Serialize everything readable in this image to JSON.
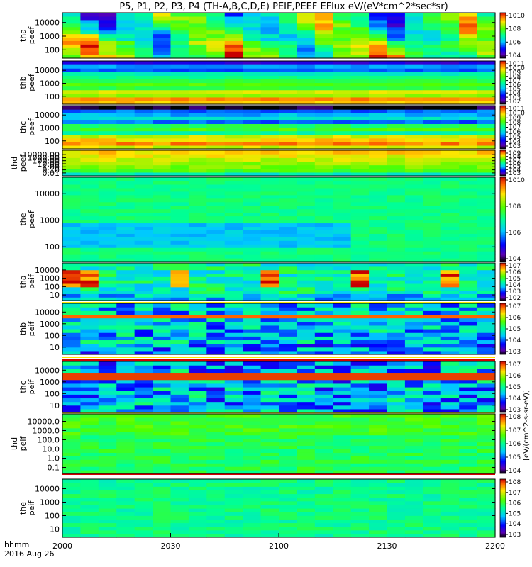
{
  "title": "P5, P1, P2, P3, P4 (TH-A,B,C,D,E) PEIF,PEEF EFlux eV/(eV*cm^2*sec*sr)",
  "units_label": "[eV/(cm^2-s-sr-eV)]",
  "x_axis": {
    "ticks": [
      "2000",
      "2030",
      "2100",
      "2130",
      "2200"
    ],
    "label_line1": "hhmm",
    "label_line2": "2016 Aug 26"
  },
  "chart_data": [
    {
      "type": "heatmap",
      "probe": "tha",
      "quantity": "peef",
      "ylabel": [
        "tha",
        "peef"
      ],
      "y_tick_labels": [
        "10000",
        "1000",
        "100"
      ],
      "y_scale": "log",
      "ylim_eV": [
        10,
        30000
      ],
      "colorbar_tick_labels": [
        "10^10",
        "10^8",
        "10^6",
        "10^4"
      ],
      "coverage_start_frac": 0.0
    },
    {
      "type": "heatmap",
      "probe": "thb",
      "quantity": "peef",
      "ylabel": [
        "thb",
        "peef"
      ],
      "y_tick_labels": [
        "10000",
        "1000",
        "100"
      ],
      "y_scale": "log",
      "ylim_eV": [
        10,
        30000
      ],
      "colorbar_tick_labels": [
        "10^11",
        "10^10",
        "10^9",
        "10^8",
        "10^7",
        "10^6",
        "10^5",
        "10^4",
        "10^3",
        "10^2"
      ],
      "coverage_start_frac": 0.0
    },
    {
      "type": "heatmap",
      "probe": "thc",
      "quantity": "peef",
      "ylabel": [
        "thc",
        "peef"
      ],
      "y_tick_labels": [
        "10000",
        "1000",
        "100"
      ],
      "y_scale": "log",
      "ylim_eV": [
        10,
        30000
      ],
      "colorbar_tick_labels": [
        "10^11",
        "10^10",
        "10^9",
        "10^8",
        "10^7",
        "10^6",
        "10^5",
        "10^4",
        "10^3"
      ],
      "coverage_start_frac": 0.0
    },
    {
      "type": "heatmap",
      "probe": "thd",
      "quantity": "peef",
      "ylabel": [
        "thd",
        "peef"
      ],
      "y_tick_labels": [
        "10000.00",
        "1000.00",
        "100.00",
        "10.00",
        "1.00",
        "0.10",
        "0.01"
      ],
      "y_scale": "log",
      "ylim_eV": [
        0.01,
        30000
      ],
      "colorbar_tick_labels": [
        "10^9",
        "10^8",
        "10^7",
        "10^6",
        "10^5",
        "10^4",
        "10^3"
      ],
      "coverage_start_frac": 0.0
    },
    {
      "type": "heatmap",
      "probe": "the",
      "quantity": "peef",
      "ylabel": [
        "the",
        "peef"
      ],
      "y_tick_labels": [
        "10000",
        "1000",
        "100"
      ],
      "y_scale": "log",
      "ylim_eV": [
        10,
        30000
      ],
      "colorbar_tick_labels": [
        "10^10",
        "10^8",
        "10^6",
        "10^4"
      ],
      "coverage_start_frac": 0.0
    },
    {
      "type": "heatmap",
      "probe": "tha",
      "quantity": "peif",
      "ylabel": [
        "tha",
        "peif"
      ],
      "y_tick_labels": [
        "10000",
        "1000",
        "100",
        "10"
      ],
      "y_scale": "log",
      "ylim_eV": [
        5,
        30000
      ],
      "colorbar_tick_labels": [
        "10^7",
        "10^6",
        "10^5",
        "10^4",
        "10^3",
        "10^2"
      ],
      "coverage_start_frac": 0.0
    },
    {
      "type": "heatmap",
      "probe": "thb",
      "quantity": "peif",
      "ylabel": [
        "thb",
        "peif"
      ],
      "y_tick_labels": [
        "10000",
        "1000",
        "100",
        "10"
      ],
      "y_scale": "log",
      "ylim_eV": [
        5,
        30000
      ],
      "colorbar_tick_labels": [
        "10^7",
        "10^6",
        "10^5",
        "10^4",
        "10^3"
      ],
      "coverage_start_frac": 0.0
    },
    {
      "type": "heatmap",
      "probe": "thc",
      "quantity": "peif",
      "ylabel": [
        "thc",
        "peif"
      ],
      "y_tick_labels": [
        "10000",
        "1000",
        "100",
        "10"
      ],
      "y_scale": "log",
      "ylim_eV": [
        5,
        30000
      ],
      "colorbar_tick_labels": [
        "10^7",
        "10^6",
        "10^5",
        "10^4",
        "10^3"
      ],
      "coverage_start_frac": 0.0
    },
    {
      "type": "heatmap",
      "probe": "thd",
      "quantity": "peif",
      "ylabel": [
        "thd",
        "peif"
      ],
      "y_tick_labels": [
        "10000.0",
        "1000.0",
        "100.0",
        "10.0",
        "1.0",
        "0.1"
      ],
      "y_scale": "log",
      "ylim_eV": [
        0.05,
        30000
      ],
      "colorbar_tick_labels": [
        "10^8",
        "10^7",
        "10^6",
        "10^5",
        "10^4"
      ],
      "coverage_start_frac": 0.0
    },
    {
      "type": "heatmap",
      "probe": "the",
      "quantity": "peif",
      "ylabel": [
        "the",
        "peif"
      ],
      "y_tick_labels": [
        "10000",
        "1000",
        "100",
        "10"
      ],
      "y_scale": "log",
      "ylim_eV": [
        5,
        30000
      ],
      "colorbar_tick_labels": [
        "10^8",
        "10^7",
        "10^6",
        "10^5",
        "10^4",
        "10^3"
      ],
      "coverage_start_frac": 0.0
    }
  ]
}
